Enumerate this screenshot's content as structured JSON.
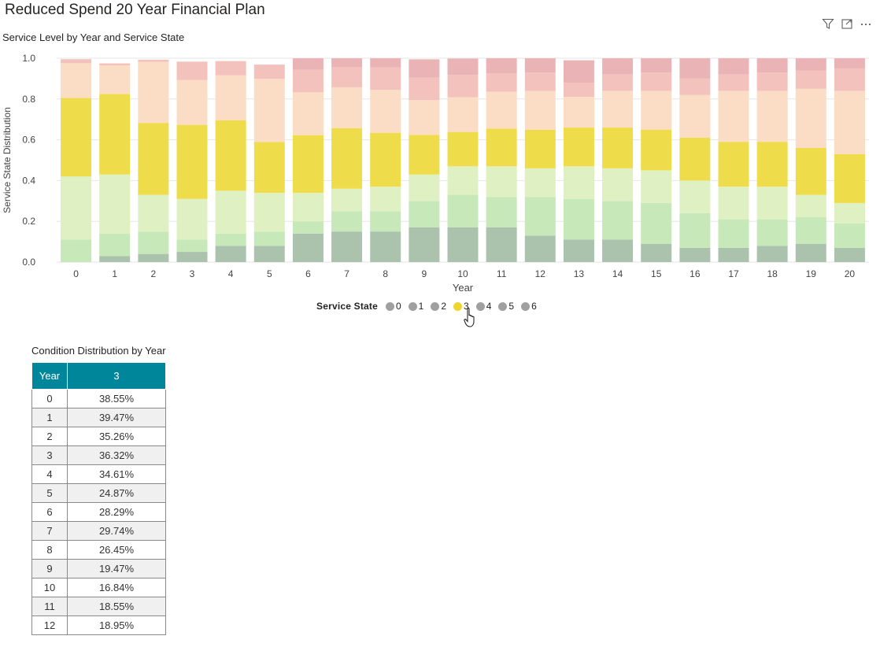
{
  "page": {
    "title": "Reduced Spend 20 Year Financial Plan"
  },
  "visual_header": {
    "icons": [
      "filter-icon",
      "focus-mode-icon",
      "more-options-icon"
    ]
  },
  "chart": {
    "title": "Service Level by Year and Service State"
  },
  "chart_data": {
    "type": "bar",
    "stacked": true,
    "title": "Service Level by Year and Service State",
    "xlabel": "Year",
    "ylabel": "Service State Distribution",
    "ylim": [
      0,
      1
    ],
    "yticks": [
      "0.0",
      "0.2",
      "0.4",
      "0.6",
      "0.8",
      "1.0"
    ],
    "grid": true,
    "legend_title": "Service State",
    "legend_position": "bottom",
    "highlighted_series": "3",
    "categories": [
      "0",
      "1",
      "2",
      "3",
      "4",
      "5",
      "6",
      "7",
      "8",
      "9",
      "10",
      "11",
      "12",
      "13",
      "14",
      "15",
      "16",
      "17",
      "18",
      "19",
      "20"
    ],
    "series": [
      {
        "name": "0",
        "color": "#abc2ac",
        "values": [
          0.0,
          0.03,
          0.04,
          0.05,
          0.08,
          0.08,
          0.14,
          0.15,
          0.15,
          0.17,
          0.17,
          0.17,
          0.13,
          0.11,
          0.11,
          0.09,
          0.07,
          0.07,
          0.08,
          0.09,
          0.07
        ]
      },
      {
        "name": "1",
        "color": "#c7e8b8",
        "values": [
          0.11,
          0.11,
          0.11,
          0.06,
          0.06,
          0.07,
          0.06,
          0.1,
          0.1,
          0.13,
          0.16,
          0.15,
          0.19,
          0.2,
          0.19,
          0.2,
          0.17,
          0.14,
          0.13,
          0.13,
          0.12
        ]
      },
      {
        "name": "2",
        "color": "#dff0c2",
        "values": [
          0.31,
          0.29,
          0.18,
          0.2,
          0.21,
          0.19,
          0.14,
          0.11,
          0.12,
          0.13,
          0.14,
          0.15,
          0.14,
          0.16,
          0.16,
          0.16,
          0.16,
          0.16,
          0.16,
          0.11,
          0.1
        ]
      },
      {
        "name": "3",
        "color": "#efdc4a",
        "values": [
          0.3855,
          0.3947,
          0.3526,
          0.3632,
          0.3461,
          0.2487,
          0.2829,
          0.2974,
          0.2645,
          0.1947,
          0.1684,
          0.1855,
          0.1895,
          0.19,
          0.2,
          0.2,
          0.21,
          0.22,
          0.22,
          0.23,
          0.24
        ]
      },
      {
        "name": "4",
        "color": "#fbdcc4",
        "values": [
          0.17,
          0.14,
          0.3,
          0.22,
          0.22,
          0.31,
          0.21,
          0.2,
          0.21,
          0.17,
          0.17,
          0.18,
          0.19,
          0.15,
          0.18,
          0.19,
          0.21,
          0.25,
          0.25,
          0.29,
          0.31
        ]
      },
      {
        "name": "5",
        "color": "#f4c2bc",
        "values": [
          0.02,
          0.01,
          0.01,
          0.09,
          0.07,
          0.07,
          0.11,
          0.1,
          0.11,
          0.11,
          0.11,
          0.09,
          0.09,
          0.07,
          0.08,
          0.09,
          0.08,
          0.08,
          0.09,
          0.09,
          0.11
        ]
      },
      {
        "name": "6",
        "color": "#eab4b6",
        "values": [
          0.0,
          0.0,
          0.0,
          0.0,
          0.0,
          0.0,
          0.07,
          0.05,
          0.05,
          0.09,
          0.08,
          0.08,
          0.12,
          0.11,
          0.08,
          0.08,
          0.1,
          0.09,
          0.07,
          0.06,
          0.05
        ]
      }
    ]
  },
  "legend": {
    "title": "Service State",
    "items": [
      {
        "label": "0",
        "color": "#a0a0a0"
      },
      {
        "label": "1",
        "color": "#a0a0a0"
      },
      {
        "label": "2",
        "color": "#a0a0a0"
      },
      {
        "label": "3",
        "color": "#eed630"
      },
      {
        "label": "4",
        "color": "#a0a0a0"
      },
      {
        "label": "5",
        "color": "#a0a0a0"
      },
      {
        "label": "6",
        "color": "#a0a0a0"
      }
    ]
  },
  "table": {
    "title": "Condition Distribution by Year",
    "headers": [
      "Year",
      "3"
    ],
    "header_color": "#00869a",
    "rows": [
      [
        "0",
        "38.55%"
      ],
      [
        "1",
        "39.47%"
      ],
      [
        "2",
        "35.26%"
      ],
      [
        "3",
        "36.32%"
      ],
      [
        "4",
        "34.61%"
      ],
      [
        "5",
        "24.87%"
      ],
      [
        "6",
        "28.29%"
      ],
      [
        "7",
        "29.74%"
      ],
      [
        "8",
        "26.45%"
      ],
      [
        "9",
        "19.47%"
      ],
      [
        "10",
        "16.84%"
      ],
      [
        "11",
        "18.55%"
      ],
      [
        "12",
        "18.95%"
      ]
    ]
  }
}
